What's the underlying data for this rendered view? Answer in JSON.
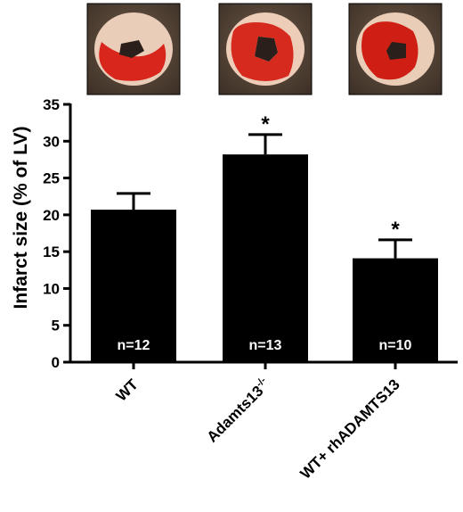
{
  "chart_data": {
    "type": "bar",
    "categories": [
      "WT",
      "Adamts13",
      "WT+ rhADAMTS13"
    ],
    "category_superscript": [
      "",
      "-/-",
      ""
    ],
    "values": [
      20.7,
      28.2,
      14.1
    ],
    "error": [
      2.2,
      2.7,
      2.5
    ],
    "n_labels": [
      "n=12",
      "n=13",
      "n=10"
    ],
    "significance": [
      "",
      "*",
      "*"
    ],
    "ylabel": "Infarct size (% of LV)",
    "ylim": [
      0,
      35
    ],
    "yticks": [
      0,
      5,
      10,
      15,
      20,
      25,
      30,
      35
    ],
    "bar_color": "#000000",
    "n_label_color": "#ffffff",
    "images": [
      {
        "name": "wt-heart-section",
        "tissue_color": "#e9cdb9",
        "infarct_color": "#d8261c"
      },
      {
        "name": "adamts13-heart-section",
        "tissue_color": "#eecdb8",
        "infarct_color": "#d62a1f"
      },
      {
        "name": "wt-rhadamts13-heart-section",
        "tissue_color": "#e9cdb6",
        "infarct_color": "#cf1f14"
      }
    ]
  }
}
